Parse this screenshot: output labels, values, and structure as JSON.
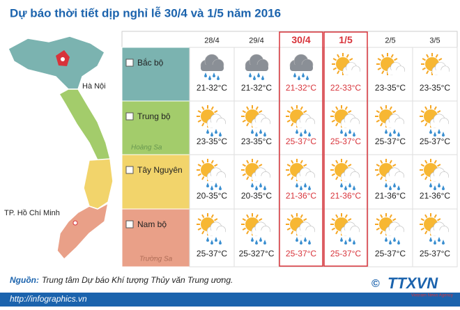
{
  "title": "Dự báo thời tiết dịp nghỉ lễ 30/4 và 1/5 năm 2016",
  "map": {
    "labels": [
      "Hà Nội",
      "TP. Hồ Chí Minh",
      "Hoàng Sa",
      "Trường Sa"
    ]
  },
  "table": {
    "columns": [
      "28/4",
      "29/4",
      "30/4",
      "1/5",
      "2/5",
      "3/5"
    ],
    "rows": [
      {
        "region": "Bắc bộ",
        "temps": [
          "21-32°C",
          "21-32°C",
          "21-32°C",
          "22-33°C",
          "23-35°C",
          "23-35°C"
        ]
      },
      {
        "region": "Trung bộ",
        "temps": [
          "23-35°C",
          "23-35°C",
          "25-37°C",
          "25-37°C",
          "25-37°C",
          "25-37°C"
        ]
      },
      {
        "region": "Tây Nguyên",
        "temps": [
          "20-35°C",
          "20-35°C",
          "21-36°C",
          "21-36°C",
          "21-36°C",
          "21-36°C"
        ]
      },
      {
        "region": "Nam bộ",
        "temps": [
          "25-37°C",
          "25-327°C",
          "25-37°C",
          "25-37°C",
          "25-37°C",
          "25-37°C"
        ]
      }
    ]
  },
  "source": {
    "label": "Nguồn:",
    "text": "Trung tâm Dự báo Khí tượng Thủy văn Trung ương."
  },
  "footer": {
    "url": "http://infographics.vn",
    "copyright": "©",
    "logo": "TTXVN",
    "agency": "Vietnam News Agency"
  }
}
